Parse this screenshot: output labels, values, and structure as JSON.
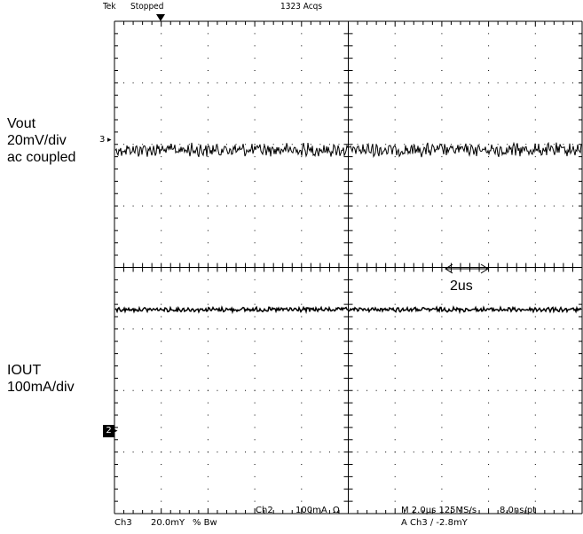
{
  "header": {
    "brand": "Tek",
    "status": "Stopped",
    "acqs": "1323 Acqs"
  },
  "labels": {
    "vout": "Vout",
    "vout_scale": "20mV/div",
    "vout_coupling": "ac coupled",
    "iout": "IOUT",
    "iout_scale": "100mA/div",
    "time_span": "2us"
  },
  "markers": {
    "ch3": "3",
    "ch2": "2"
  },
  "footer": {
    "ch3": "Ch3",
    "ch3_scale": "20.0mY",
    "ch3_bw": "% Bw",
    "ch2": "Ch2",
    "ch2_scale": "100mA",
    "ch2_impedance": "Ω",
    "timebase": "M 2.0µs 125MS/s",
    "resolution": "8.0ns/pt",
    "trigger": "A Ch3 ∕ -2.8mY"
  },
  "colors": {
    "trace": "#000000",
    "grid": "#000000",
    "background": "#ffffff"
  }
}
